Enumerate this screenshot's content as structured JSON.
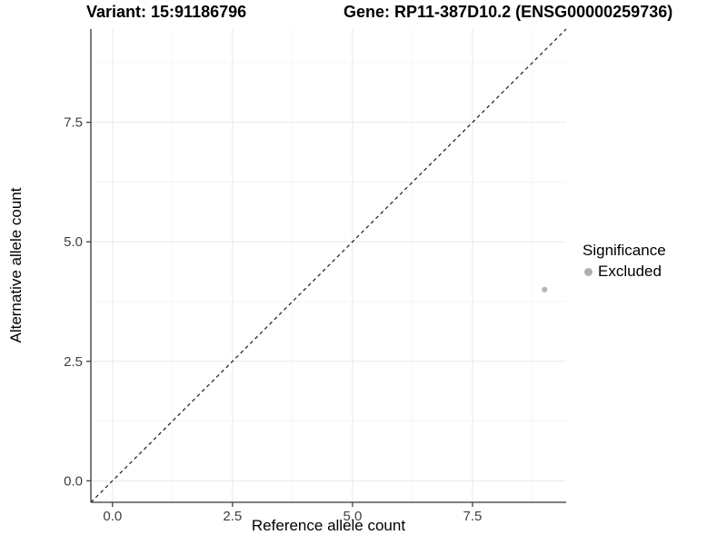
{
  "titles": {
    "variant": "Variant: 15:91186796",
    "gene": "Gene: RP11-387D10.2 (ENSG00000259736)"
  },
  "chart_data": {
    "type": "scatter",
    "title_left": "Variant: 15:91186796",
    "title_right": "Gene: RP11-387D10.2 (ENSG00000259736)",
    "xlabel": "Reference allele count",
    "ylabel": "Alternative allele count",
    "xlim": [
      -0.45,
      9.45
    ],
    "ylim": [
      -0.45,
      9.45
    ],
    "x_major_ticks": [
      0,
      2.5,
      5,
      7.5
    ],
    "y_major_ticks": [
      0,
      2.5,
      5,
      7.5
    ],
    "x_tick_labels": [
      "0.0",
      "2.5",
      "5.0",
      "7.5"
    ],
    "y_tick_labels": [
      "0.0",
      "2.5",
      "5.0",
      "7.5"
    ],
    "x_minor_gridlines": [
      1.25,
      3.75,
      6.25,
      8.75
    ],
    "y_minor_gridlines": [
      1.25,
      3.75,
      6.25,
      8.75
    ],
    "grid": true,
    "reference_line": {
      "kind": "identity",
      "slope": 1,
      "intercept": 0,
      "style": "dashed"
    },
    "series": [
      {
        "name": "Excluded",
        "points": [
          {
            "x": 9,
            "y": 4
          }
        ]
      }
    ],
    "legend": {
      "title": "Significance",
      "position": "right",
      "entries": [
        {
          "label": "Excluded",
          "color": "#b0b0b0"
        }
      ]
    }
  },
  "colors": {
    "background": "#ffffff",
    "axis_line": "#333333",
    "tick_mark": "#333333",
    "tick_label": "#404040",
    "grid_major": "#e9e9e9",
    "grid_minor": "#f5f5f5",
    "reference_line": "#1a1a1a",
    "point": "#b5b5b5",
    "legend_key": "#b0b0b0"
  }
}
